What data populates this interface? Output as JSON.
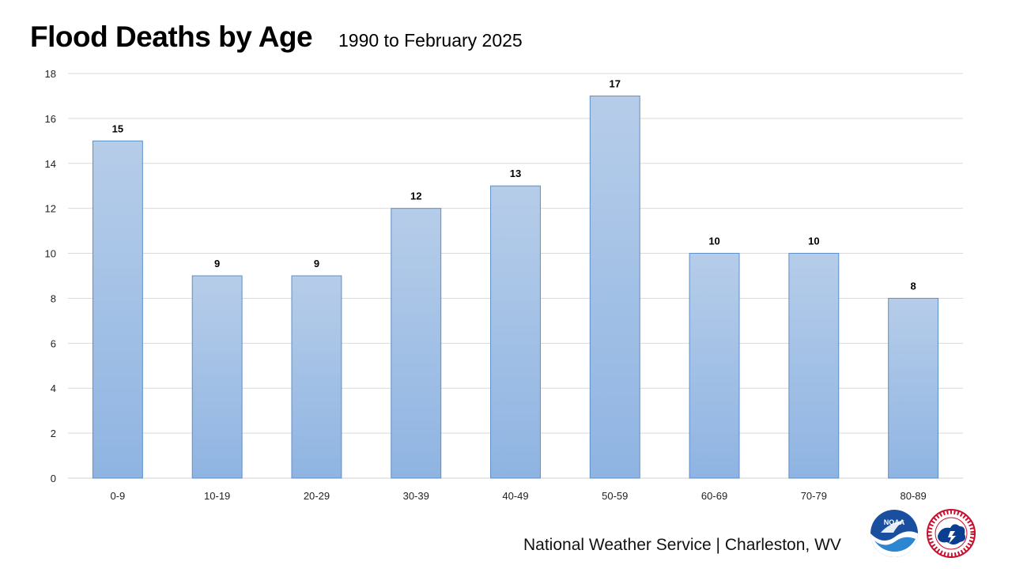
{
  "header": {
    "title": "Flood Deaths by Age",
    "subtitle": "1990 to February 2025"
  },
  "footer": {
    "credit": "National Weather Service | Charleston, WV",
    "logos": [
      "noaa-logo",
      "nws-logo"
    ]
  },
  "chart_data": {
    "type": "bar",
    "title": "Flood Deaths by Age",
    "subtitle": "1990 to February 2025",
    "xlabel": "",
    "ylabel": "",
    "categories": [
      "0-9",
      "10-19",
      "20-29",
      "30-39",
      "40-49",
      "50-59",
      "60-69",
      "70-79",
      "80-89"
    ],
    "values": [
      15,
      9,
      9,
      12,
      13,
      17,
      10,
      10,
      8
    ],
    "ylim": [
      0,
      18
    ],
    "yticks": [
      0,
      2,
      4,
      6,
      8,
      10,
      12,
      14,
      16,
      18
    ],
    "grid": true,
    "legend": "none",
    "data_labels": true,
    "colors": {
      "bar_top": "#b6cde9",
      "bar_bottom": "#8fb4e2",
      "bar_border": "#5b8fc9",
      "grid": "#d9d9d9"
    }
  }
}
